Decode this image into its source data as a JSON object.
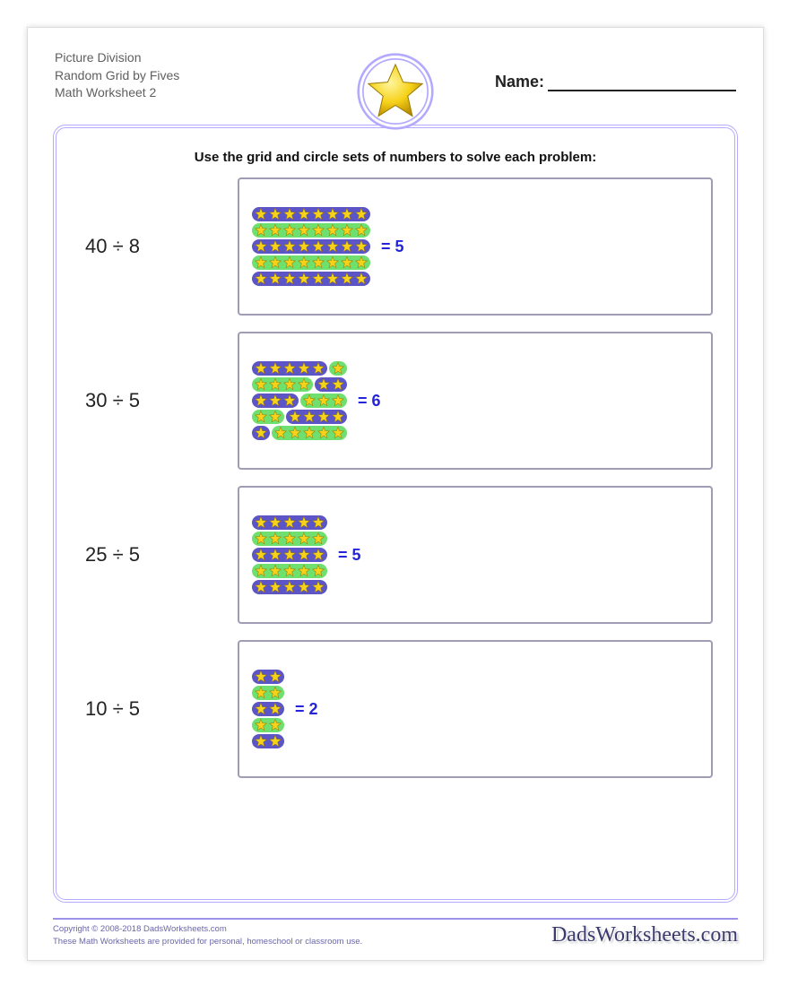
{
  "colors": {
    "frame_border": "#b3aaff",
    "box_border": "#9f9cb3",
    "star_fill": "#f7d21a",
    "star_stroke": "#9a7a00",
    "pill_purple": "#5b55c8",
    "pill_green": "#6fe06f",
    "result_text": "#2424d8",
    "footer_text": "#6a66a8",
    "footer_line": "#9c92e8",
    "title_text": "#5f5f60"
  },
  "header": {
    "title_lines": [
      "Picture Division",
      "Random Grid by Fives",
      "Math Worksheet 2"
    ],
    "name_label": "Name:"
  },
  "instructions": "Use the grid and circle sets of numbers to solve each problem:",
  "star": {
    "size": 16
  },
  "problems": [
    {
      "equation": "40 ÷ 8",
      "result": "= 5",
      "rows": [
        {
          "groups": [
            {
              "color": "purple",
              "count": 8
            }
          ]
        },
        {
          "groups": [
            {
              "color": "green",
              "count": 8
            }
          ]
        },
        {
          "groups": [
            {
              "color": "purple",
              "count": 8
            }
          ]
        },
        {
          "groups": [
            {
              "color": "green",
              "count": 8
            }
          ]
        },
        {
          "groups": [
            {
              "color": "purple",
              "count": 8
            }
          ]
        }
      ]
    },
    {
      "equation": "30 ÷ 5",
      "result": "= 6",
      "rows": [
        {
          "groups": [
            {
              "color": "purple",
              "count": 5
            },
            {
              "color": "green",
              "count": 1
            }
          ]
        },
        {
          "groups": [
            {
              "color": "green",
              "count": 4
            },
            {
              "color": "purple",
              "count": 2
            }
          ]
        },
        {
          "groups": [
            {
              "color": "purple",
              "count": 3
            },
            {
              "color": "green",
              "count": 3
            }
          ]
        },
        {
          "groups": [
            {
              "color": "green",
              "count": 2
            },
            {
              "color": "purple",
              "count": 4
            }
          ]
        },
        {
          "groups": [
            {
              "color": "purple",
              "count": 1
            },
            {
              "color": "green",
              "count": 5
            }
          ]
        }
      ]
    },
    {
      "equation": "25 ÷ 5",
      "result": "= 5",
      "rows": [
        {
          "groups": [
            {
              "color": "purple",
              "count": 5
            }
          ]
        },
        {
          "groups": [
            {
              "color": "green",
              "count": 5
            }
          ]
        },
        {
          "groups": [
            {
              "color": "purple",
              "count": 5
            }
          ]
        },
        {
          "groups": [
            {
              "color": "green",
              "count": 5
            }
          ]
        },
        {
          "groups": [
            {
              "color": "purple",
              "count": 5
            }
          ]
        }
      ]
    },
    {
      "equation": "10 ÷ 5",
      "result": "= 2",
      "rows": [
        {
          "groups": [
            {
              "color": "purple",
              "count": 2
            }
          ]
        },
        {
          "groups": [
            {
              "color": "green",
              "count": 2
            }
          ]
        },
        {
          "groups": [
            {
              "color": "purple",
              "count": 2
            }
          ]
        },
        {
          "groups": [
            {
              "color": "green",
              "count": 2
            }
          ]
        },
        {
          "groups": [
            {
              "color": "purple",
              "count": 2
            }
          ]
        }
      ]
    }
  ],
  "footer": {
    "copyright": "Copyright © 2008-2018 DadsWorksheets.com",
    "disclaimer": "These Math Worksheets are provided for personal, homeschool or classroom use.",
    "logo_text": "DadsWorksheets.com"
  }
}
